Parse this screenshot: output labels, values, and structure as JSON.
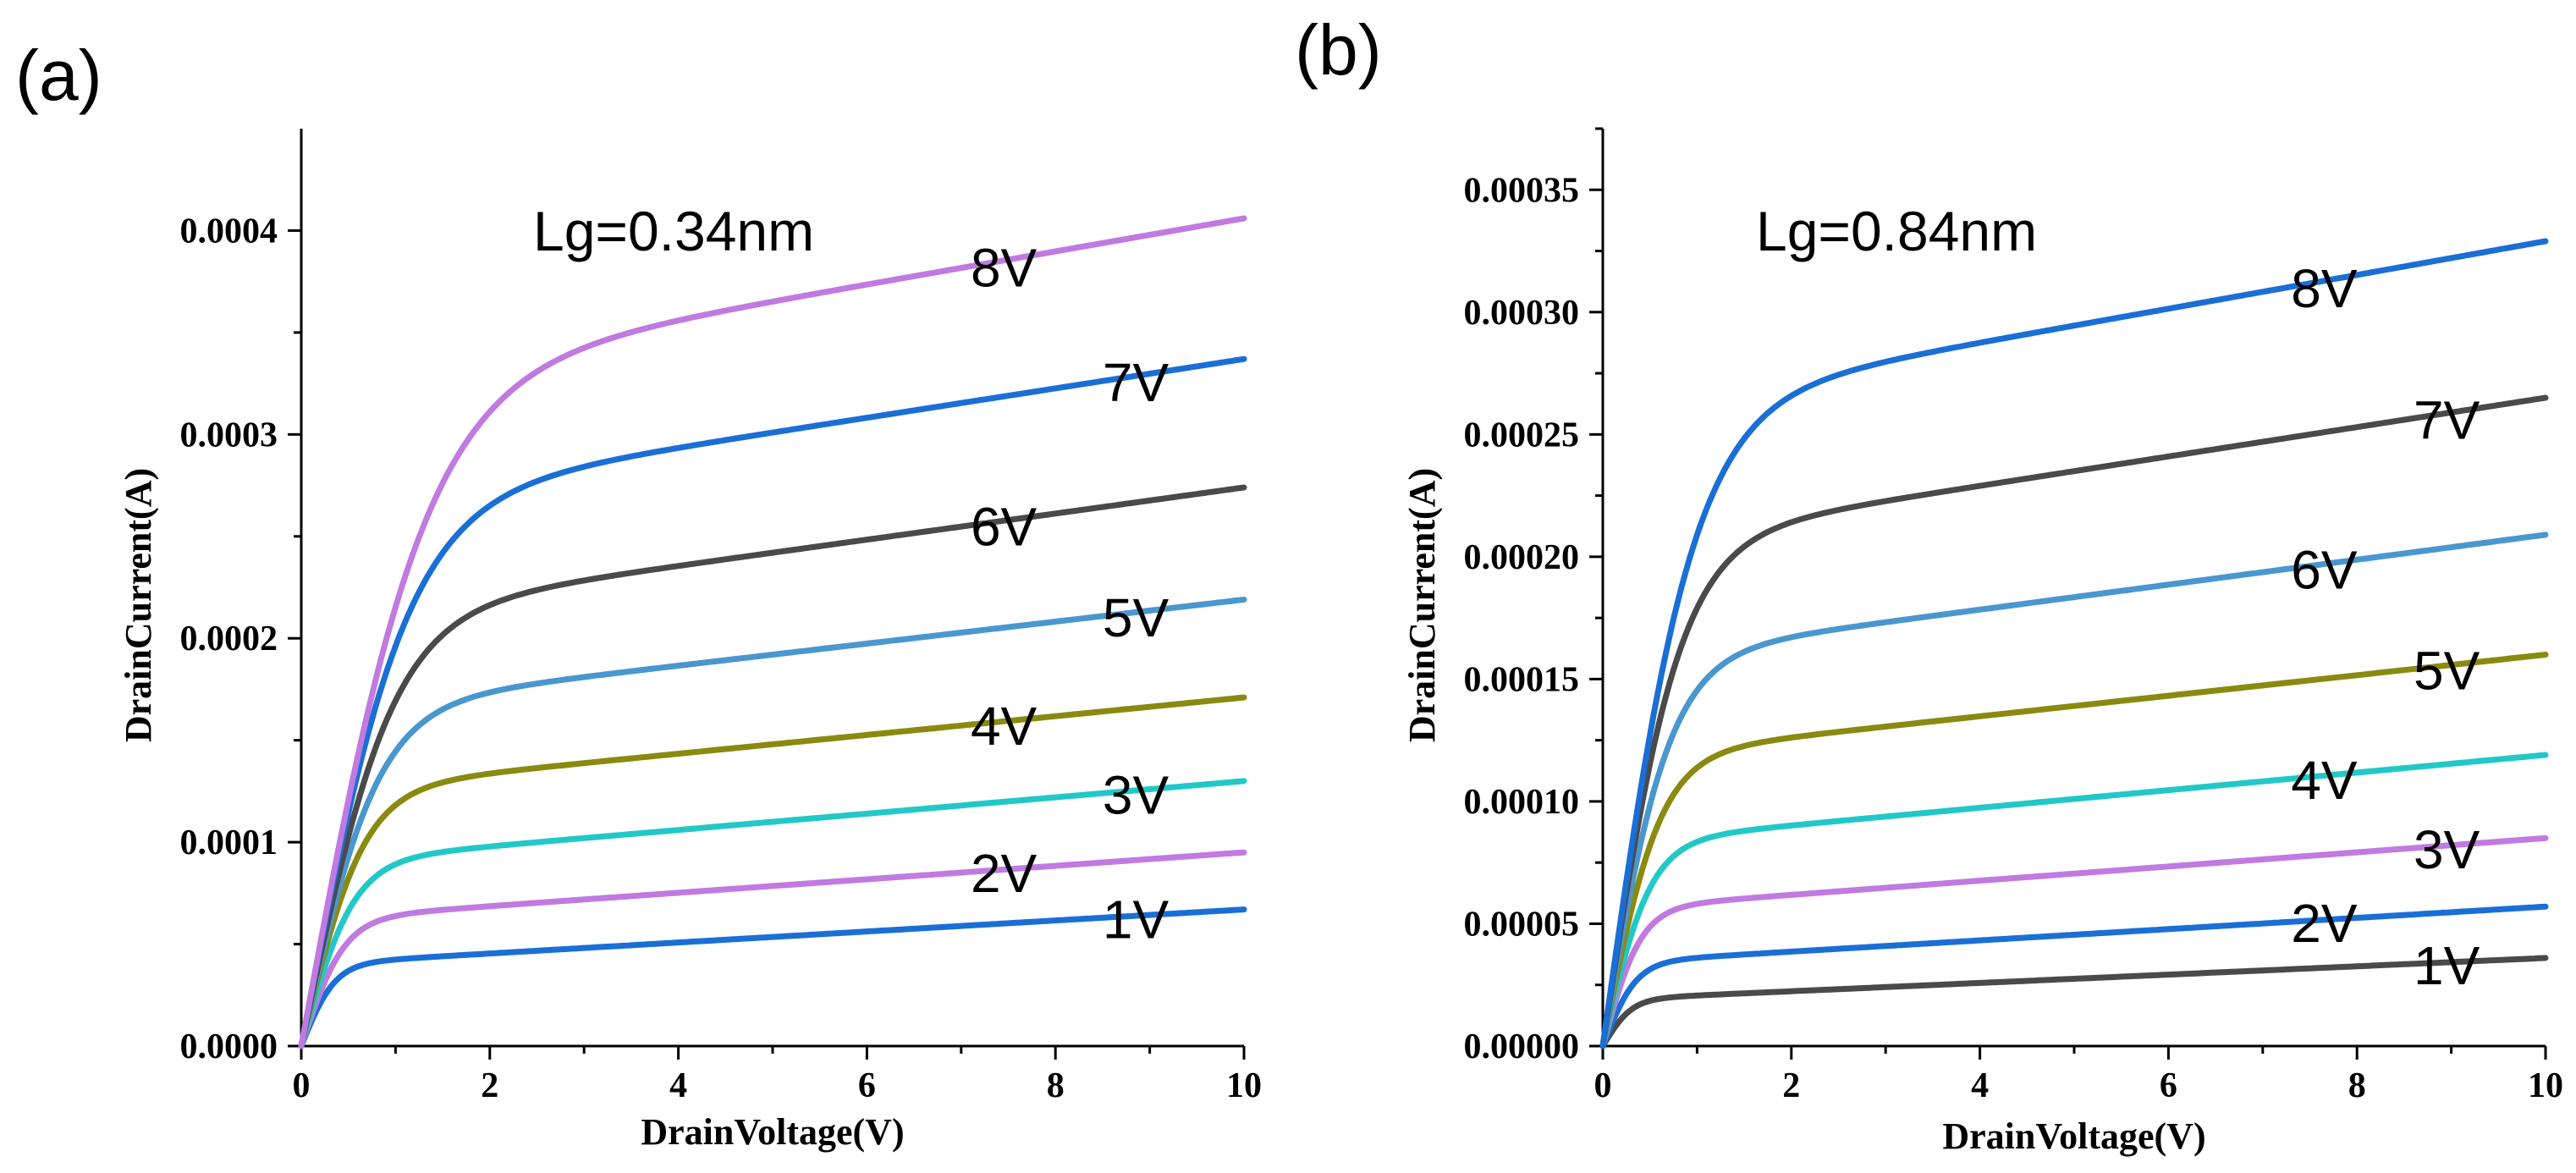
{
  "chart_data": [
    {
      "type": "line",
      "panel_label": "(a)",
      "annotation": "Lg=0.34nm",
      "xlabel": "DrainVoltage(V)",
      "ylabel": "DrainCurrent(A)",
      "xlim": [
        0,
        10
      ],
      "ylim": [
        0,
        0.00045
      ],
      "x_ticks": [
        0,
        2,
        4,
        6,
        8,
        10
      ],
      "x_tick_labels": [
        "0",
        "2",
        "4",
        "6",
        "8",
        "10"
      ],
      "y_ticks": [
        0,
        0.0001,
        0.0002,
        0.0003,
        0.0004
      ],
      "y_tick_labels": [
        "0.0000",
        "0.0001",
        "0.0002",
        "0.0003",
        "0.0004"
      ],
      "series": [
        {
          "name": "1V",
          "color": "#1a6fd6",
          "isat": 4e-05,
          "knee": 0.35,
          "iend": 6.7e-05,
          "label_x": 8.5
        },
        {
          "name": "2V",
          "color": "#c07ae0",
          "isat": 6.2e-05,
          "knee": 0.45,
          "iend": 9.5e-05,
          "label_x": 7.1
        },
        {
          "name": "3V",
          "color": "#22c8c8",
          "isat": 9e-05,
          "knee": 0.55,
          "iend": 0.00013,
          "label_x": 8.5
        },
        {
          "name": "4V",
          "color": "#8a8a10",
          "isat": 0.000125,
          "knee": 0.65,
          "iend": 0.000171,
          "label_x": 7.1
        },
        {
          "name": "5V",
          "color": "#4a97cf",
          "isat": 0.000165,
          "knee": 0.8,
          "iend": 0.000219,
          "label_x": 8.5
        },
        {
          "name": "6V",
          "color": "#4a4a4a",
          "isat": 0.00021,
          "knee": 0.95,
          "iend": 0.000274,
          "label_x": 7.1
        },
        {
          "name": "7V",
          "color": "#1a6fd6",
          "isat": 0.000265,
          "knee": 1.1,
          "iend": 0.000337,
          "label_x": 8.5
        },
        {
          "name": "8V",
          "color": "#c07ae0",
          "isat": 0.000325,
          "knee": 1.3,
          "iend": 0.000406,
          "label_x": 7.1
        }
      ]
    },
    {
      "type": "line",
      "panel_label": "(b)",
      "annotation": "Lg=0.84nm",
      "xlabel": "DrainVoltage(V)",
      "ylabel": "DrainCurrent(A)",
      "xlim": [
        0,
        10
      ],
      "ylim": [
        0,
        0.000375
      ],
      "x_ticks": [
        0,
        2,
        4,
        6,
        8,
        10
      ],
      "x_tick_labels": [
        "0",
        "2",
        "4",
        "6",
        "8",
        "10"
      ],
      "y_ticks": [
        0,
        5e-05,
        0.0001,
        0.00015,
        0.0002,
        0.00025,
        0.0003,
        0.00035
      ],
      "y_tick_labels": [
        "0.00000",
        "0.00005",
        "0.00010",
        "0.00015",
        "0.00020",
        "0.00025",
        "0.00030",
        "0.00035"
      ],
      "series": [
        {
          "name": "1V",
          "color": "#4a4a4a",
          "isat": 1.9e-05,
          "knee": 0.3,
          "iend": 3.6e-05,
          "label_x": 8.6
        },
        {
          "name": "2V",
          "color": "#1a6fd6",
          "isat": 3.4e-05,
          "knee": 0.35,
          "iend": 5.7e-05,
          "label_x": 7.3
        },
        {
          "name": "3V",
          "color": "#c07ae0",
          "isat": 5.6e-05,
          "knee": 0.4,
          "iend": 8.5e-05,
          "label_x": 8.6
        },
        {
          "name": "4V",
          "color": "#22c8c8",
          "isat": 8.3e-05,
          "knee": 0.5,
          "iend": 0.000119,
          "label_x": 7.3
        },
        {
          "name": "5V",
          "color": "#8a8a10",
          "isat": 0.000118,
          "knee": 0.6,
          "iend": 0.00016,
          "label_x": 8.6
        },
        {
          "name": "6V",
          "color": "#4a97cf",
          "isat": 0.000158,
          "knee": 0.7,
          "iend": 0.000209,
          "label_x": 7.3
        },
        {
          "name": "7V",
          "color": "#4a4a4a",
          "isat": 0.000205,
          "knee": 0.8,
          "iend": 0.000265,
          "label_x": 8.6
        },
        {
          "name": "8V",
          "color": "#1a6fd6",
          "isat": 0.00026,
          "knee": 0.95,
          "iend": 0.000329,
          "label_x": 7.3
        }
      ]
    }
  ]
}
